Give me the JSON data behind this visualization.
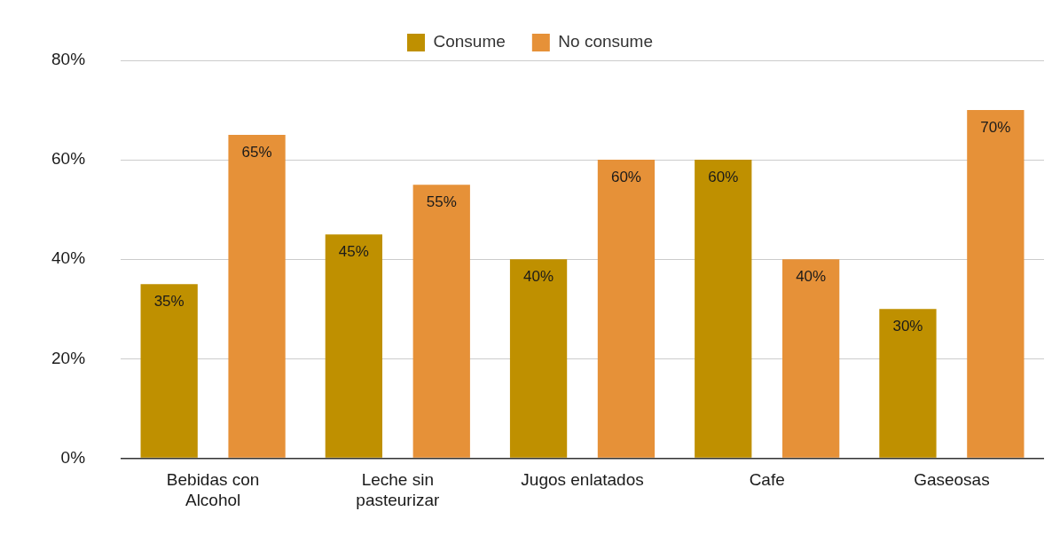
{
  "chart_data": {
    "type": "bar",
    "categories": [
      "Bebidas con Alcohol",
      "Leche sin pasteurizar",
      "Jugos enlatados",
      "Cafe",
      "Gaseosas"
    ],
    "series": [
      {
        "name": "Consume",
        "color": "#bf9000",
        "values": [
          35,
          45,
          40,
          60,
          30
        ],
        "value_labels": [
          "35%",
          "45%",
          "40%",
          "60%",
          "30%"
        ]
      },
      {
        "name": "No consume",
        "color": "#e69138",
        "values": [
          65,
          55,
          60,
          40,
          70
        ],
        "value_labels": [
          "65%",
          "55%",
          "60%",
          "40%",
          "70%"
        ]
      }
    ],
    "ylim": [
      0,
      80
    ],
    "yticks": [
      {
        "value": 0,
        "label": "0%"
      },
      {
        "value": 20,
        "label": "20%"
      },
      {
        "value": 40,
        "label": "40%"
      },
      {
        "value": 60,
        "label": "60%"
      },
      {
        "value": 80,
        "label": "80%"
      }
    ],
    "grid": "y",
    "legend": "top"
  }
}
